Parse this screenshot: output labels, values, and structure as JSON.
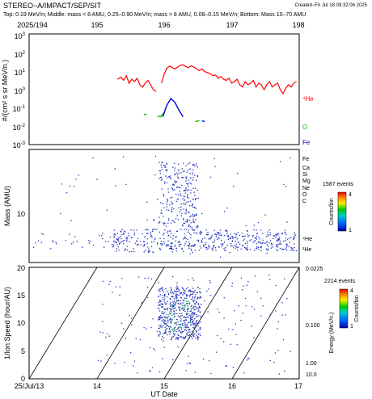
{
  "header": {
    "title": "STEREO−A/IMPACT/SEP/SIT",
    "created": "Created−Fri Jul 18 09:32:06 2025",
    "description": "Top: 0.19 MeV/n; Middle: mass < 8 AMU, 0.25–0.90 MeV/n; mass > 8 AMU, 0.08–0.15 MeV/n; Bottom: Mass 10–70 AMU"
  },
  "colors": {
    "he_line": "#ff0000",
    "o_line": "#00bb00",
    "fe_line": "#0000dd",
    "dots": "#2233bb"
  },
  "chart_data": [
    {
      "type": "line",
      "panel": "top",
      "x_axis": "day of year 2025",
      "top_tick_labels": [
        "2025/194",
        "195",
        "196",
        "197",
        "198"
      ],
      "xlim": [
        194,
        198
      ],
      "ylabel": "#/(cm² s sr MeV/n.)",
      "yscale": "log",
      "ylim": [
        0.001,
        100
      ],
      "ytick_labels": [
        "10³",
        "10²",
        "10¹",
        "10⁰",
        "10⁻¹",
        "10⁻²",
        "10⁻³"
      ],
      "ytick_exps": [
        "3",
        "2",
        "1",
        "0",
        "-1",
        "-2",
        "-3"
      ],
      "series": [
        {
          "name": "⁴He",
          "color": "#ff0000",
          "x": [
            195.31,
            195.36,
            195.4,
            195.44,
            195.48,
            195.52,
            195.56,
            195.6,
            195.64,
            195.68,
            195.72,
            195.76,
            195.8,
            195.84,
            195.88,
            195.92,
            195.96,
            196.0,
            196.04,
            196.08,
            196.12,
            196.16,
            196.2,
            196.24,
            196.28,
            196.32,
            196.36,
            196.4,
            196.44,
            196.48,
            196.52,
            196.56,
            196.6,
            196.64,
            196.68,
            196.72,
            196.76,
            196.8,
            196.84,
            196.88,
            196.92,
            196.96,
            197.0,
            197.04,
            197.08,
            197.12,
            197.16,
            197.2,
            197.24,
            197.28,
            197.32,
            197.36,
            197.4,
            197.44,
            197.48,
            197.52,
            197.56,
            197.6,
            197.64,
            197.68,
            197.72,
            197.76,
            197.8,
            197.84,
            197.88,
            197.92,
            197.96
          ],
          "y": [
            0.9,
            1.1,
            0.8,
            1.3,
            0.6,
            0.9,
            0.7,
            1.0,
            0.5,
            0.4,
            0.6,
            0.8,
            0.5,
            0.3,
            0.25,
            null,
            0.6,
            1.5,
            2.8,
            3.5,
            3.0,
            2.6,
            3.2,
            3.8,
            4.0,
            3.4,
            3.0,
            3.6,
            3.2,
            2.6,
            2.2,
            2.6,
            2.0,
            1.8,
            1.6,
            1.3,
            1.4,
            1.0,
            1.2,
            0.9,
            0.8,
            1.0,
            0.6,
            0.7,
            0.9,
            0.5,
            0.4,
            0.7,
            0.5,
            0.6,
            0.8,
            0.4,
            0.6,
            0.5,
            0.3,
            0.5,
            0.7,
            0.4,
            0.5,
            0.6,
            0.3,
            0.2,
            0.35,
            0.5,
            0.4,
            0.6,
            0.7
          ]
        },
        {
          "name": "O",
          "color": "#00bb00",
          "x": [
            195.7,
            195.74,
            null,
            195.9,
            195.95,
            196.0,
            null,
            196.46,
            196.52
          ],
          "y": [
            0.022,
            0.024,
            null,
            0.02,
            0.018,
            0.028,
            null,
            0.011,
            0.012
          ]
        },
        {
          "name": "Fe",
          "color": "#0000dd",
          "x": [
            195.98,
            196.04,
            196.1,
            196.16,
            196.22,
            196.28,
            null,
            196.56,
            196.6
          ],
          "y": [
            0.018,
            0.06,
            0.12,
            0.08,
            0.035,
            0.018,
            null,
            0.012,
            0.011
          ]
        }
      ]
    },
    {
      "type": "scatter",
      "panel": "middle",
      "ylabel": "Mass (AMU)",
      "ytick_labels": [
        "10"
      ],
      "right_labels": [
        "Fe",
        "Ca",
        "Si",
        "Mg",
        "Ne",
        "O",
        "C",
        "⁴He",
        "³He"
      ],
      "colorbar": {
        "title": "1587 events",
        "label": "Counts/bin",
        "ticks": [
          "4",
          "1"
        ]
      }
    },
    {
      "type": "scatter",
      "panel": "bottom",
      "ylabel": "1/Ion Speed (hour/AU)",
      "xlabel": "UT Date",
      "ylim": [
        0,
        20
      ],
      "ytick_labels": [
        "0",
        "5",
        "10",
        "15",
        "20"
      ],
      "xtick_labels": [
        "25/Jul/13",
        "14",
        "15",
        "16",
        "17"
      ],
      "right_axis": {
        "label": "Energy (MeV/n.)",
        "tick_labels": [
          "0.0225",
          "0.100",
          "1.00",
          "10.0"
        ]
      },
      "colorbar": {
        "title": "2214 events",
        "label": "Counts/bin",
        "ticks": [
          "4",
          "1"
        ]
      }
    }
  ]
}
